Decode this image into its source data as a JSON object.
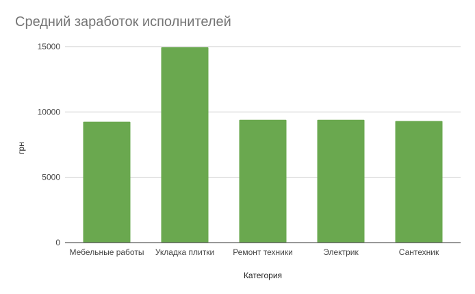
{
  "chart_data": {
    "type": "bar",
    "title": "Средний заработок исполнителей",
    "xlabel": "Категория",
    "ylabel": "грн",
    "categories": [
      "Мебельные работы",
      "Укладка плитки",
      "Ремонт техники",
      "Электрик",
      "Сантехник"
    ],
    "series": [
      {
        "values": [
          9250,
          14950,
          9400,
          9400,
          9300
        ]
      }
    ],
    "ylim": [
      0,
      15000
    ],
    "yticks": [
      0,
      5000,
      10000,
      15000
    ],
    "grid": true,
    "legend": "none",
    "bar_color": "#6aa84f",
    "grid_color": "#cccccc",
    "axis_color": "#333333"
  }
}
